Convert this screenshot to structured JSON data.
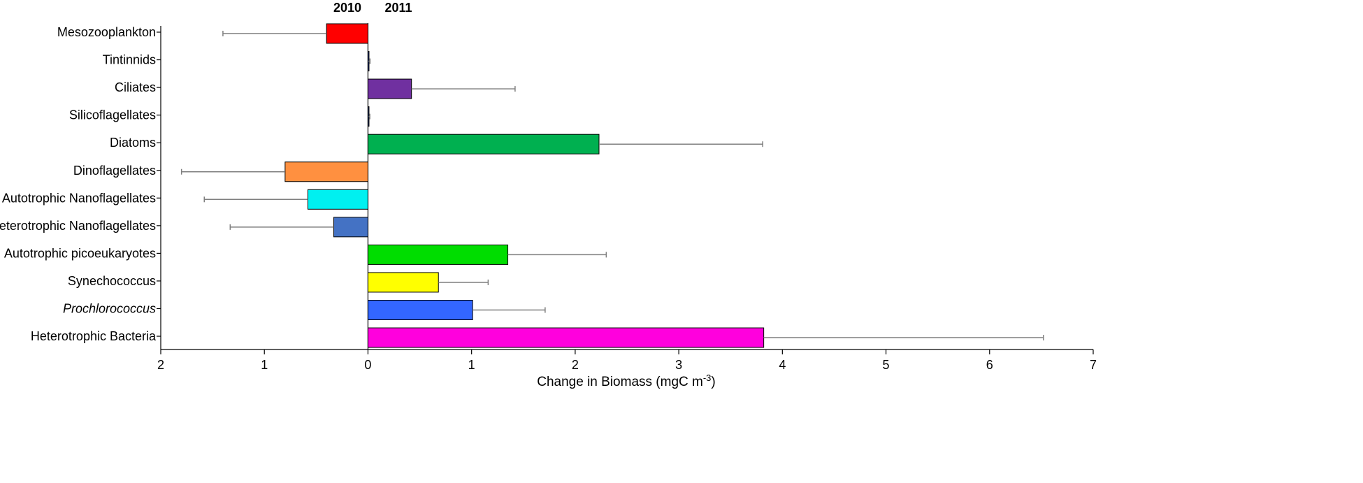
{
  "chart_data": {
    "type": "bar",
    "orientation": "horizontal",
    "group_labels": [
      "2010",
      "2011"
    ],
    "xlabel": "Change in Biomass (mgC m",
    "xlabel_superscript": "-3",
    "xlabel_suffix": ")",
    "xlim": [
      -2,
      7
    ],
    "x_ticks": [
      -2,
      -1,
      0,
      1,
      2,
      3,
      4,
      5,
      6,
      7
    ],
    "x_tick_labels": [
      "2",
      "1",
      "0",
      "1",
      "2",
      "3",
      "4",
      "5",
      "6",
      "7"
    ],
    "categories": [
      "Mesozooplankton",
      "Tintinnids",
      "Ciliates",
      "Silicoflagellates",
      "Diatoms",
      "Dinoflagellates",
      "Autotrophic Nanoflagellates",
      "Heterotrophic Nanoflagellates",
      "Autotrophic picoeukaryotes",
      "Synechococcus",
      "Prochlorococcus",
      "Heterotrophic Bacteria"
    ],
    "italic_categories": [
      "Prochlorococcus"
    ],
    "values": [
      -0.4,
      0.005,
      0.42,
      0.008,
      2.23,
      -0.8,
      -0.58,
      -0.33,
      1.35,
      0.68,
      1.01,
      3.82
    ],
    "errors": [
      1.0,
      0.015,
      1.0,
      0.01,
      1.58,
      1.0,
      1.0,
      1.0,
      0.95,
      0.48,
      0.7,
      2.7
    ],
    "colors": [
      "#ff0000",
      "#1f3f9f",
      "#7030a0",
      "#1f3f7f",
      "#00b050",
      "#ff9040",
      "#00f0f0",
      "#4472c4",
      "#00dd00",
      "#ffff00",
      "#3366ff",
      "#ff00dd"
    ]
  }
}
